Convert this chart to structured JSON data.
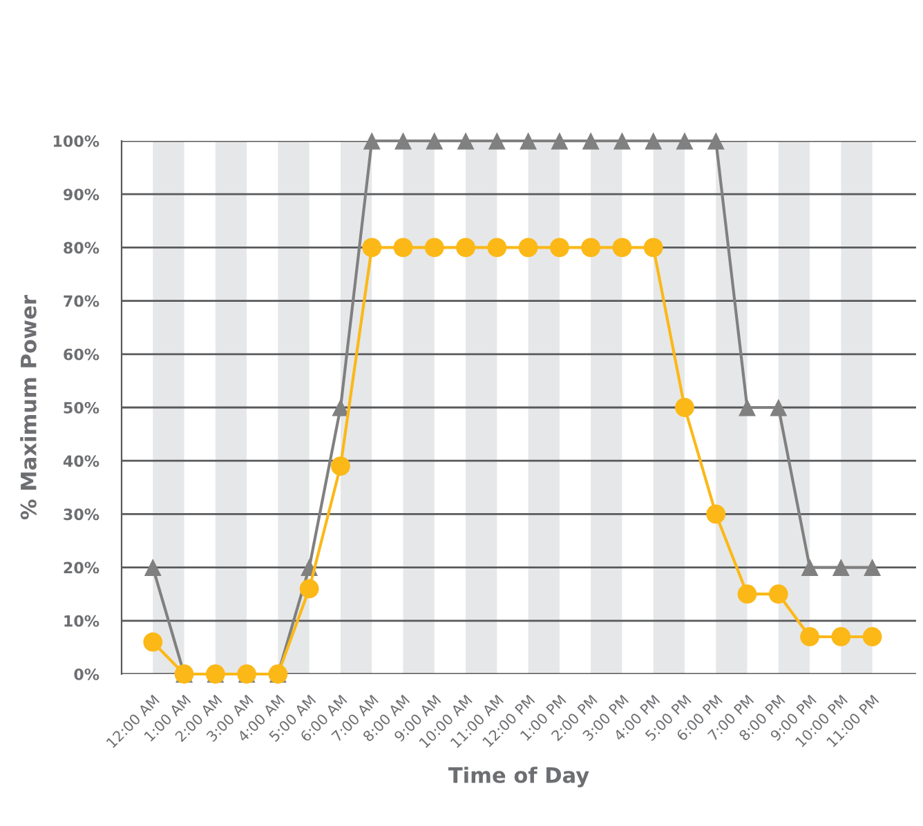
{
  "chart_data": {
    "type": "line",
    "xlabel": "Time of Day",
    "ylabel": "% Maximum Power",
    "categories": [
      "12:00 AM",
      "1:00 AM",
      "2:00 AM",
      "3:00 AM",
      "4:00 AM",
      "5:00 AM",
      "6:00 AM",
      "7:00 AM",
      "8:00 AM",
      "9:00 AM",
      "10:00 AM",
      "11:00 AM",
      "12:00 PM",
      "1:00 PM",
      "2:00 PM",
      "3:00 PM",
      "4:00 PM",
      "5:00 PM",
      "6:00 PM",
      "7:00 PM",
      "8:00 PM",
      "9:00 PM",
      "10:00 PM",
      "11:00 PM"
    ],
    "series": [
      {
        "color": "#808080",
        "marker": "triangle",
        "values": [
          20,
          0,
          0,
          0,
          0,
          20,
          50,
          100,
          100,
          100,
          100,
          100,
          100,
          100,
          100,
          100,
          100,
          100,
          100,
          50,
          50,
          20,
          20,
          20
        ]
      },
      {
        "color": "#fbb817",
        "marker": "circle",
        "values": [
          6,
          0,
          0,
          0,
          0,
          16,
          39,
          80,
          80,
          80,
          80,
          80,
          80,
          80,
          80,
          80,
          80,
          50,
          30,
          15,
          15,
          7,
          7,
          7
        ]
      }
    ],
    "ylim": [
      0,
      100
    ],
    "yticks": [
      {
        "value": 0,
        "label": "0%"
      },
      {
        "value": 10,
        "label": "10%"
      },
      {
        "value": 20,
        "label": "20%"
      },
      {
        "value": 30,
        "label": "30%"
      },
      {
        "value": 40,
        "label": "40%"
      },
      {
        "value": 50,
        "label": "50%"
      },
      {
        "value": 60,
        "label": "60%"
      },
      {
        "value": 70,
        "label": "70%"
      },
      {
        "value": 80,
        "label": "80%"
      },
      {
        "value": 90,
        "label": "90%"
      },
      {
        "value": 100,
        "label": "100%"
      }
    ],
    "grid": "y",
    "legend": false,
    "bands": [
      {
        "axis": "x",
        "from": "12:00 AM",
        "to": "1:00 AM",
        "color": "#e6e7e8"
      },
      {
        "axis": "x",
        "from": "2:00 AM",
        "to": "3:00 AM",
        "color": "#e6e7e8"
      },
      {
        "axis": "x",
        "from": "4:00 AM",
        "to": "5:00 AM",
        "color": "#e6e7e8"
      },
      {
        "axis": "x",
        "from": "6:00 AM",
        "to": "7:00 AM",
        "color": "#e6e7e8"
      },
      {
        "axis": "x",
        "from": "8:00 AM",
        "to": "9:00 AM",
        "color": "#e6e7e8"
      },
      {
        "axis": "x",
        "from": "10:00 AM",
        "to": "11:00 AM",
        "color": "#e6e7e8"
      },
      {
        "axis": "x",
        "from": "12:00 PM",
        "to": "1:00 PM",
        "color": "#e6e7e8"
      },
      {
        "axis": "x",
        "from": "2:00 PM",
        "to": "3:00 PM",
        "color": "#e6e7e8"
      },
      {
        "axis": "x",
        "from": "4:00 PM",
        "to": "5:00 PM",
        "color": "#e6e7e8"
      },
      {
        "axis": "x",
        "from": "6:00 PM",
        "to": "7:00 PM",
        "color": "#e6e7e8"
      },
      {
        "axis": "x",
        "from": "8:00 PM",
        "to": "9:00 PM",
        "color": "#e6e7e8"
      },
      {
        "axis": "x",
        "from": "10:00 PM",
        "to": "11:00 PM",
        "color": "#e6e7e8"
      }
    ]
  }
}
